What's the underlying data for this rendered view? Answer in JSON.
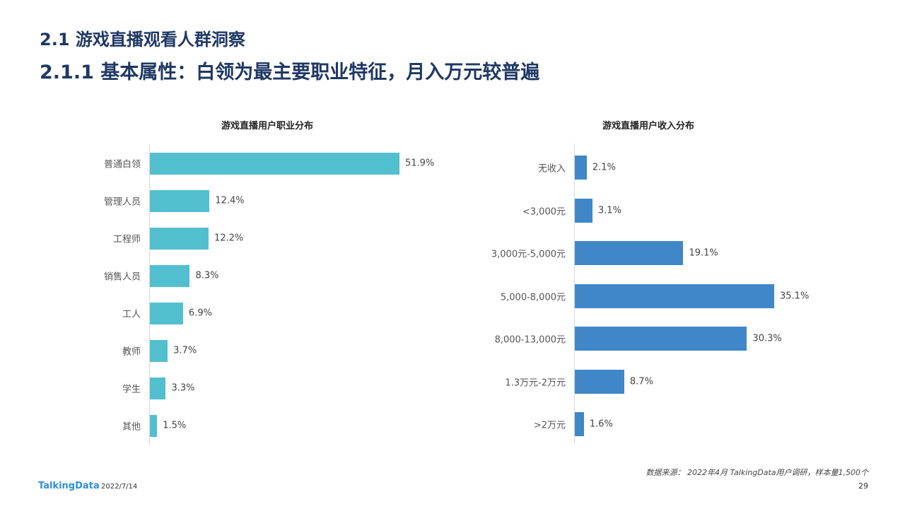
{
  "page": {
    "heading_main": "2.1 游戏直播观看人群洞察",
    "heading_sub": "2.1.1 基本属性：白领为最主要职业特征，月入万元较普遍"
  },
  "chart_data": [
    {
      "type": "bar",
      "orientation": "horizontal",
      "title": "游戏直播用户职业分布",
      "categories": [
        "普通白领",
        "管理人员",
        "工程师",
        "销售人员",
        "工人",
        "教师",
        "学生",
        "其他"
      ],
      "values": [
        51.9,
        12.4,
        12.2,
        8.3,
        6.9,
        3.7,
        3.3,
        1.5
      ],
      "value_labels": [
        "51.9%",
        "12.4%",
        "12.2%",
        "8.3%",
        "6.9%",
        "3.7%",
        "3.3%",
        "1.5%"
      ],
      "unit": "%",
      "color": "#52bfcf",
      "xlim": [
        0,
        51.9
      ],
      "grid": false,
      "legend": "none"
    },
    {
      "type": "bar",
      "orientation": "horizontal",
      "title": "游戏直播用户收入分布",
      "categories": [
        "无收入",
        "<3,000元",
        "3,000元-5,000元",
        "5,000-8,000元",
        "8,000-13,000元",
        "1.3万元-2万元",
        ">2万元"
      ],
      "values": [
        2.1,
        3.1,
        19.1,
        35.1,
        30.3,
        8.7,
        1.6
      ],
      "value_labels": [
        "2.1%",
        "3.1%",
        "19.1%",
        "35.1%",
        "30.3%",
        "8.7%",
        "1.6%"
      ],
      "unit": "%",
      "color": "#3f87c8",
      "xlim": [
        0,
        35.1
      ],
      "grid": false,
      "legend": "none"
    }
  ],
  "footer": {
    "source": "数据来源： 2022年4月 TalkingData用户调研，样本量1,500个",
    "brand": "TalkingData",
    "date": "2022/7/14",
    "page_number": "29"
  }
}
